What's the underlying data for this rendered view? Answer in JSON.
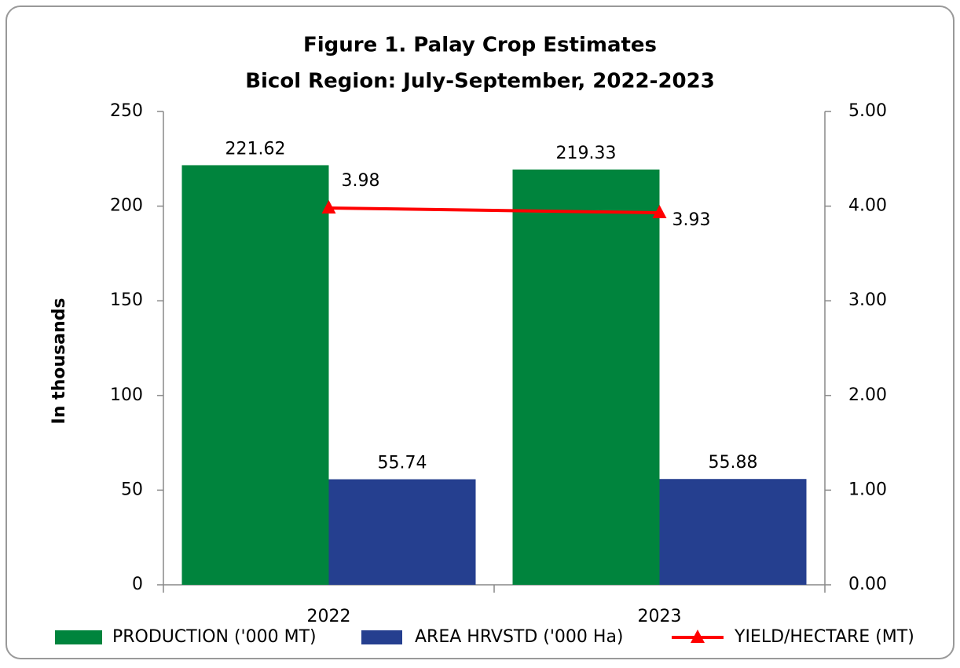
{
  "chart_data": {
    "type": "bar",
    "title": "Figure 1. Palay Crop Estimates",
    "subtitle": "Bicol Region: July-September, 2022-2023",
    "y_label": "In thousands",
    "categories": [
      "2022",
      "2023"
    ],
    "series": [
      {
        "name": "PRODUCTION ('000 MT)",
        "color": "#00843d",
        "values": [
          221.62,
          219.33
        ]
      },
      {
        "name": "AREA HRVSTD ('000 Ha)",
        "color": "#253f8f",
        "values": [
          55.74,
          55.88
        ]
      },
      {
        "name": "YIELD/HECTARE  (MT)",
        "color": "#ff0000",
        "type": "line",
        "axis": "y2",
        "values": [
          3.98,
          3.93
        ]
      }
    ],
    "ylim": [
      0,
      250
    ],
    "yticks": [
      0,
      50,
      100,
      150,
      200,
      250
    ],
    "y2lim": [
      0,
      5
    ],
    "y2ticks": [
      {
        "value": 0,
        "label": "0.00"
      },
      {
        "value": 1,
        "label": "1.00"
      },
      {
        "value": 2,
        "label": "2.00"
      },
      {
        "value": 3,
        "label": "3.00"
      },
      {
        "value": 4,
        "label": "4.00"
      },
      {
        "value": 5,
        "label": "5.00"
      }
    ],
    "legend": "bottom"
  }
}
